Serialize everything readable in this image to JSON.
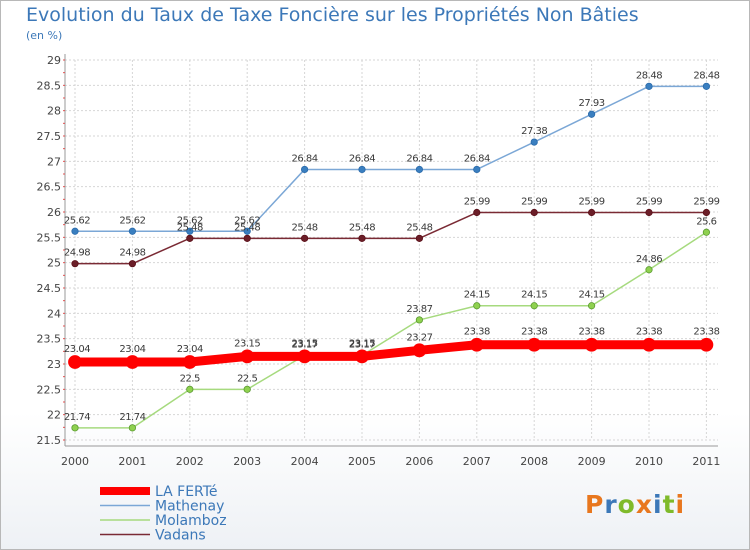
{
  "chart_data": {
    "type": "line",
    "title": "Evolution du Taux de Taxe Foncière sur les Propriétés Non Bâties",
    "subtitle": "(en %)",
    "x": [
      "2000",
      "2001",
      "2002",
      "2003",
      "2004",
      "2005",
      "2006",
      "2007",
      "2008",
      "2009",
      "2010",
      "2011"
    ],
    "ylim": [
      21.5,
      29
    ],
    "yticks": [
      21.5,
      22,
      22.5,
      23,
      23.5,
      24,
      24.5,
      25,
      25.5,
      26,
      26.5,
      27,
      27.5,
      28,
      28.5,
      29
    ],
    "grid": true,
    "legend_position": "bottom-left",
    "series": [
      {
        "name": "LA FERTé",
        "color": "#ff0000",
        "values": [
          23.04,
          23.04,
          23.04,
          23.15,
          23.15,
          23.15,
          23.27,
          23.38,
          23.38,
          23.38,
          23.38,
          23.38
        ]
      },
      {
        "name": "Mathenay",
        "color": "#7ba7d6",
        "values": [
          25.62,
          25.62,
          25.62,
          25.62,
          26.84,
          26.84,
          26.84,
          26.84,
          27.38,
          27.93,
          28.48,
          28.48
        ]
      },
      {
        "name": "Molamboz",
        "color": "#a6da7e",
        "values": [
          21.74,
          21.74,
          22.5,
          22.5,
          23.17,
          23.17,
          23.87,
          24.15,
          24.15,
          24.15,
          24.86,
          25.6
        ]
      },
      {
        "name": "Vadans",
        "color": "#7a2a34",
        "values": [
          24.98,
          24.98,
          25.48,
          25.48,
          25.48,
          25.48,
          25.48,
          25.99,
          25.99,
          25.99,
          25.99,
          25.99
        ]
      }
    ],
    "data_labels": [
      [
        "23.04",
        "23.04",
        "23.04",
        "23.15",
        "23.15",
        "23.15",
        "23.27",
        "23.38",
        "23.38",
        "23.38",
        "23.38",
        "23.38"
      ],
      [
        "25.62",
        "25.62",
        "25.62",
        "25.62",
        "26.84",
        "26.84",
        "26.84",
        "26.84",
        "27.38",
        "27.93",
        "28.48",
        "28.48"
      ],
      [
        "21.74",
        "21.74",
        "22.5",
        "22.5",
        "23.17",
        "23.17",
        "23.87",
        "24.15",
        "24.15",
        "24.15",
        "24.86",
        "25.6"
      ],
      [
        "24.98",
        "24.98",
        "25.48",
        "25.48",
        "25.48",
        "25.48",
        "25.48",
        "25.99",
        "25.99",
        "25.99",
        "25.99",
        "25.99"
      ]
    ]
  },
  "logo": {
    "text": "Proxiti",
    "colors": [
      "#e8771e",
      "#3c78b8",
      "#7fba2a",
      "#e8771e",
      "#3c78b8",
      "#7fba2a",
      "#e8771e"
    ]
  }
}
